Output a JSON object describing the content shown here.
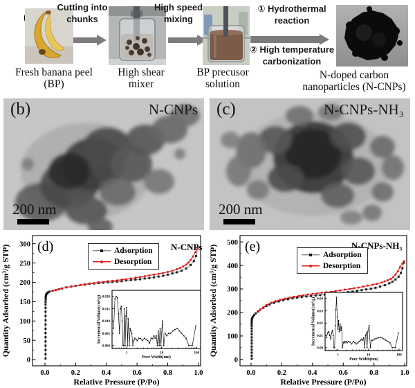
{
  "figure": {
    "panel_a": {
      "label": "(a)",
      "arrow1_label": "Cutting into chunks",
      "arrow2_label": "High speed mixing",
      "arrow3_top": "① Hydrothermal reaction",
      "arrow3_bottom": "② High temperature carbonization",
      "captions": [
        "Fresh banana peel (BP)",
        "High shear mixer",
        "BP precusor solution",
        "N-doped carbon nanoparticles (N-CNPs)"
      ]
    },
    "panel_b": {
      "label": "(b)",
      "title": "N-CNPs",
      "scalebar": "200 nm"
    },
    "panel_c": {
      "label": "(c)",
      "title": "N-CNPs-NH₃",
      "scalebar": "200 nm"
    }
  },
  "colors": {
    "adsorption_marker": "#1a1a1a",
    "adsorption_line": "#8f8f8f",
    "desorption": "#e01818",
    "arrow_gray": "#7c7c7c"
  },
  "chart_data": [
    {
      "type": "line",
      "panel_label": "(d)",
      "title": "N-CNPs",
      "xlabel": "Relative Pressure (P/Po)",
      "ylabel": "Quantity Adsorbed (cm³/g STP)",
      "xlim": [
        -0.081,
        1.014
      ],
      "ylim": [
        -16,
        321
      ],
      "xticks": [
        0,
        0.2,
        0.4,
        0.6,
        0.8,
        1
      ],
      "xtick_labels": [
        "0.0",
        "0.2",
        "0.4",
        "0.6",
        "0.8",
        "1.0"
      ],
      "yticks": [
        0,
        50,
        100,
        150,
        200,
        250,
        300
      ],
      "ytick_labels": [
        "0",
        "50",
        "100",
        "150",
        "200",
        "250",
        "300"
      ],
      "legend": [
        {
          "name": "Adsorption",
          "color": "#1a1a1a",
          "line": "#8f8f8f",
          "marker": "square"
        },
        {
          "name": "Desorption",
          "color": "#e01818",
          "line": "#e01818",
          "marker": "circle"
        }
      ],
      "series": [
        {
          "name": "Adsorption",
          "color": "#1a1a1a",
          "line": "#8f8f8f",
          "marker": "square",
          "x": [
            0.004,
            0.004,
            0.004,
            0.004,
            0.004,
            0.004,
            0.004,
            0.004,
            0.004,
            0.004,
            0.004,
            0.004,
            0.004,
            0.004,
            0.004,
            0.005,
            0.005,
            0.005,
            0.006,
            0.007,
            0.008,
            0.01,
            0.015,
            0.02,
            0.03,
            0.05,
            0.07,
            0.09,
            0.11,
            0.14,
            0.17,
            0.2,
            0.23,
            0.26,
            0.29,
            0.32,
            0.35,
            0.38,
            0.41,
            0.44,
            0.47,
            0.5,
            0.53,
            0.56,
            0.59,
            0.62,
            0.65,
            0.68,
            0.71,
            0.74,
            0.77,
            0.8,
            0.83,
            0.86,
            0.89,
            0.92,
            0.95,
            0.97,
            0.985,
            0.995
          ],
          "y": [
            3,
            14,
            25,
            36,
            47,
            58,
            69,
            80,
            91,
            102,
            113,
            124,
            134,
            143,
            150,
            156,
            160,
            163,
            165,
            167,
            168,
            170,
            172,
            174,
            176,
            178,
            180,
            182,
            184,
            187,
            189,
            191,
            193,
            194,
            196,
            197,
            198,
            199,
            200,
            201,
            202,
            203,
            205,
            206,
            207,
            208,
            210,
            211,
            213,
            215,
            217,
            220,
            223,
            226,
            230,
            236,
            245,
            255,
            268,
            288
          ]
        },
        {
          "name": "Desorption",
          "color": "#e01818",
          "line": "#e01818",
          "marker": "circle",
          "x": [
            0.995,
            0.98,
            0.965,
            0.95,
            0.935,
            0.92,
            0.9,
            0.88,
            0.86,
            0.83,
            0.8,
            0.77,
            0.74,
            0.71,
            0.68,
            0.65,
            0.62,
            0.59,
            0.56,
            0.53,
            0.5,
            0.47,
            0.44,
            0.41,
            0.38,
            0.35,
            0.32,
            0.29,
            0.26,
            0.23,
            0.2,
            0.17,
            0.14,
            0.11,
            0.09,
            0.07,
            0.05
          ],
          "y": [
            289,
            278,
            267,
            258,
            251,
            246,
            241,
            237,
            234,
            230,
            227,
            224,
            222,
            220,
            218,
            216,
            214,
            212,
            210,
            208,
            207,
            205,
            204,
            203,
            201,
            200,
            198,
            197,
            195,
            193,
            191,
            189,
            187,
            184,
            182,
            180,
            178
          ]
        }
      ],
      "inset": {
        "type": "line",
        "xscale": "log",
        "xlabel": "Pore Width(nm)",
        "ylabel": "Incremental Volume(cm³/g)",
        "xlim": [
          0.38,
          130
        ],
        "ylim": [
          -0.0012,
          0.0225
        ],
        "xticks": [
          1,
          10,
          100
        ],
        "xtick_labels": [
          "1",
          "10",
          "100"
        ],
        "yticks": [
          0,
          0.005,
          0.01,
          0.015,
          0.02
        ],
        "ytick_labels": [
          "0.000",
          "0.005",
          "0.010",
          "0.015",
          "0.020"
        ],
        "color": "#111111",
        "x": [
          0.42,
          0.46,
          0.5,
          0.54,
          0.58,
          0.62,
          0.66,
          0.7,
          0.74,
          0.78,
          0.82,
          0.86,
          0.9,
          0.95,
          1.0,
          1.05,
          1.1,
          1.18,
          1.25,
          1.32,
          1.4,
          1.5,
          1.6,
          1.7,
          1.85,
          2.0,
          2.2,
          2.5,
          2.8,
          3.2,
          3.6,
          4.0,
          4.5,
          5.0,
          5.5,
          6.0,
          6.5,
          7.0,
          7.5,
          8.0,
          8.5,
          9.0,
          9.5,
          10.5,
          11.5,
          12.5,
          14,
          16,
          18,
          21,
          24,
          28,
          32,
          37,
          43,
          50,
          60,
          75,
          95
        ],
        "y": [
          0.007,
          0.019,
          0.02,
          0.0195,
          0.013,
          0.005,
          0.015,
          0.016,
          0.01,
          0.0,
          0.0,
          0.015,
          0.0,
          0.012,
          0.0155,
          0.0,
          0.011,
          0.0,
          0.007,
          0.006,
          0.005,
          0.0,
          0.002,
          0.003,
          0.0025,
          0.002,
          0.003,
          0.0028,
          0.002,
          0.003,
          0.0025,
          0.002,
          0.001,
          0.003,
          0.0028,
          0.004,
          0.003,
          0.004,
          0.0,
          0.006,
          0.0,
          0.007,
          0.0,
          0.01,
          0.0,
          0.005,
          0.004,
          0.005,
          0.005,
          0.006,
          0.0065,
          0.007,
          0.006,
          0.005,
          0.004,
          0.003,
          0.0,
          0.0,
          0.008
        ]
      }
    },
    {
      "type": "line",
      "panel_label": "(e)",
      "title": "N-CNPs-NH₃",
      "xlabel": "Relative Pressure (P/Po)",
      "ylabel": "Quantity Adsorbed (cm³/g STP)",
      "xlim": [
        -0.072,
        1.013
      ],
      "ylim": [
        -27,
        527
      ],
      "xticks": [
        0,
        0.2,
        0.4,
        0.6,
        0.8,
        1
      ],
      "xtick_labels": [
        "0.0",
        "0.2",
        "0.4",
        "0.6",
        "0.8",
        "1.0"
      ],
      "yticks": [
        0,
        100,
        200,
        300,
        400,
        500
      ],
      "ytick_labels": [
        "0",
        "100",
        "200",
        "300",
        "400",
        "500"
      ],
      "legend": [
        {
          "name": "Adsorption",
          "color": "#1a1a1a",
          "line": "#8f8f8f",
          "marker": "square"
        },
        {
          "name": "Desorption",
          "color": "#e01818",
          "line": "#e01818",
          "marker": "circle"
        }
      ],
      "series": [
        {
          "name": "Adsorption",
          "color": "#1a1a1a",
          "line": "#8f8f8f",
          "marker": "square",
          "x": [
            0.004,
            0.004,
            0.004,
            0.004,
            0.004,
            0.004,
            0.004,
            0.004,
            0.004,
            0.004,
            0.004,
            0.004,
            0.004,
            0.004,
            0.005,
            0.005,
            0.006,
            0.008,
            0.012,
            0.02,
            0.03,
            0.045,
            0.06,
            0.08,
            0.1,
            0.12,
            0.15,
            0.18,
            0.21,
            0.24,
            0.27,
            0.3,
            0.33,
            0.36,
            0.39,
            0.42,
            0.45,
            0.48,
            0.51,
            0.54,
            0.57,
            0.6,
            0.63,
            0.66,
            0.69,
            0.72,
            0.75,
            0.78,
            0.81,
            0.84,
            0.87,
            0.9,
            0.92,
            0.94,
            0.96,
            0.975,
            0.985,
            0.995
          ],
          "y": [
            3,
            16,
            29,
            42,
            55,
            68,
            81,
            94,
            107,
            120,
            132,
            143,
            152,
            160,
            166,
            170,
            173,
            177,
            182,
            189,
            196,
            204,
            212,
            220,
            228,
            234,
            241,
            247,
            252,
            256,
            260,
            263,
            266,
            268,
            270,
            272,
            274,
            276,
            278,
            280,
            282,
            284,
            287,
            289,
            292,
            295,
            298,
            301,
            305,
            310,
            316,
            324,
            331,
            340,
            352,
            368,
            388,
            412
          ]
        },
        {
          "name": "Desorption",
          "color": "#e01818",
          "line": "#e01818",
          "marker": "circle",
          "x": [
            0.995,
            0.985,
            0.97,
            0.955,
            0.94,
            0.925,
            0.91,
            0.89,
            0.87,
            0.85,
            0.82,
            0.79,
            0.76,
            0.73,
            0.7,
            0.67,
            0.64,
            0.61,
            0.58,
            0.55,
            0.52,
            0.49,
            0.46,
            0.43,
            0.4,
            0.37,
            0.34,
            0.31,
            0.28,
            0.25,
            0.22,
            0.19,
            0.16,
            0.13,
            0.1,
            0.08,
            0.06,
            0.05
          ],
          "y": [
            418,
            408,
            393,
            375,
            361,
            350,
            343,
            337,
            332,
            327,
            322,
            318,
            314,
            310,
            306,
            303,
            300,
            297,
            294,
            291,
            288,
            286,
            284,
            281,
            279,
            276,
            273,
            270,
            267,
            263,
            259,
            254,
            248,
            241,
            232,
            222,
            212,
            206
          ]
        }
      ],
      "inset": {
        "type": "line",
        "xscale": "log",
        "xlabel": "Pore Width(nm)",
        "ylabel": "Incremental Volume(cm³/g)",
        "xlim": [
          0.38,
          130
        ],
        "ylim": [
          -0.0024,
          0.045
        ],
        "xticks": [
          1,
          10,
          100
        ],
        "xtick_labels": [
          "1",
          "10",
          "100"
        ],
        "yticks": [
          0,
          0.01,
          0.02,
          0.03,
          0.04
        ],
        "ytick_labels": [
          "0.00",
          "0.01",
          "0.02",
          "0.03",
          "0.04"
        ],
        "color": "#111111",
        "x": [
          0.42,
          0.46,
          0.5,
          0.54,
          0.58,
          0.62,
          0.66,
          0.7,
          0.74,
          0.78,
          0.82,
          0.86,
          0.9,
          0.95,
          1.0,
          1.05,
          1.1,
          1.18,
          1.25,
          1.32,
          1.4,
          1.5,
          1.6,
          1.7,
          1.85,
          2.0,
          2.2,
          2.5,
          2.8,
          3.2,
          3.6,
          4.0,
          4.5,
          5.0,
          5.5,
          6.0,
          6.5,
          7.0,
          7.5,
          8.0,
          8.5,
          9.0,
          9.5,
          10.5,
          11.5,
          12.5,
          14,
          16,
          18,
          21,
          24,
          28,
          32,
          37,
          43,
          50,
          60,
          75,
          95
        ],
        "y": [
          0.008,
          0.012,
          0.013,
          0.01,
          0.007,
          0.012,
          0.014,
          0.01,
          0.0,
          0.0,
          0.018,
          0.031,
          0.041,
          0.025,
          0.015,
          0.022,
          0.013,
          0.019,
          0.014,
          0.017,
          0.0,
          0.004,
          0.005,
          0.004,
          0.005,
          0.004,
          0.005,
          0.0045,
          0.003,
          0.005,
          0.004,
          0.003,
          0.004,
          0.005,
          0.006,
          0.007,
          0.006,
          0.008,
          0.0,
          0.01,
          0.012,
          0.0,
          0.013,
          0.018,
          0.0,
          0.006,
          0.006,
          0.007,
          0.0075,
          0.008,
          0.0085,
          0.008,
          0.007,
          0.006,
          0.005,
          0.004,
          0.0,
          0.0,
          0.012
        ]
      }
    }
  ]
}
